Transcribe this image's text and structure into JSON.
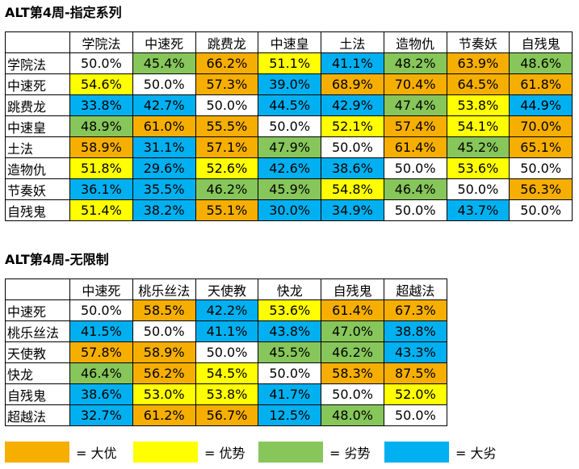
{
  "colors": {
    "orange": "#f6ae00",
    "yellow": "#ffff00",
    "green": "#87c65a",
    "blue": "#00b0f0",
    "white": "#ffffff"
  },
  "table1": {
    "title": "ALT第4周-指定系列",
    "headers": [
      "学院法",
      "中速死",
      "跳费龙",
      "中速皇",
      "土法",
      "造物仇",
      "节奏妖",
      "自残鬼"
    ],
    "rows": [
      {
        "label": "学院法",
        "cells": [
          {
            "v": "50.0%",
            "c": "white"
          },
          {
            "v": "45.4%",
            "c": "green"
          },
          {
            "v": "66.2%",
            "c": "orange"
          },
          {
            "v": "51.1%",
            "c": "yellow"
          },
          {
            "v": "41.1%",
            "c": "blue"
          },
          {
            "v": "48.2%",
            "c": "green"
          },
          {
            "v": "63.9%",
            "c": "orange"
          },
          {
            "v": "48.6%",
            "c": "green"
          }
        ]
      },
      {
        "label": "中速死",
        "cells": [
          {
            "v": "54.6%",
            "c": "yellow"
          },
          {
            "v": "50.0%",
            "c": "white"
          },
          {
            "v": "57.3%",
            "c": "orange"
          },
          {
            "v": "39.0%",
            "c": "blue"
          },
          {
            "v": "68.9%",
            "c": "orange"
          },
          {
            "v": "70.4%",
            "c": "orange"
          },
          {
            "v": "64.5%",
            "c": "orange"
          },
          {
            "v": "61.8%",
            "c": "orange"
          }
        ]
      },
      {
        "label": "跳费龙",
        "cells": [
          {
            "v": "33.8%",
            "c": "blue"
          },
          {
            "v": "42.7%",
            "c": "blue"
          },
          {
            "v": "50.0%",
            "c": "white"
          },
          {
            "v": "44.5%",
            "c": "blue"
          },
          {
            "v": "42.9%",
            "c": "blue"
          },
          {
            "v": "47.4%",
            "c": "green"
          },
          {
            "v": "53.8%",
            "c": "yellow"
          },
          {
            "v": "44.9%",
            "c": "blue"
          }
        ]
      },
      {
        "label": "中速皇",
        "cells": [
          {
            "v": "48.9%",
            "c": "green"
          },
          {
            "v": "61.0%",
            "c": "orange"
          },
          {
            "v": "55.5%",
            "c": "orange"
          },
          {
            "v": "50.0%",
            "c": "white"
          },
          {
            "v": "52.1%",
            "c": "yellow"
          },
          {
            "v": "57.4%",
            "c": "orange"
          },
          {
            "v": "54.1%",
            "c": "yellow"
          },
          {
            "v": "70.0%",
            "c": "orange"
          }
        ]
      },
      {
        "label": "土法",
        "cells": [
          {
            "v": "58.9%",
            "c": "orange"
          },
          {
            "v": "31.1%",
            "c": "blue"
          },
          {
            "v": "57.1%",
            "c": "orange"
          },
          {
            "v": "47.9%",
            "c": "green"
          },
          {
            "v": "50.0%",
            "c": "white"
          },
          {
            "v": "61.4%",
            "c": "orange"
          },
          {
            "v": "45.2%",
            "c": "green"
          },
          {
            "v": "65.1%",
            "c": "orange"
          }
        ]
      },
      {
        "label": "造物仇",
        "cells": [
          {
            "v": "51.8%",
            "c": "yellow"
          },
          {
            "v": "29.6%",
            "c": "blue"
          },
          {
            "v": "52.6%",
            "c": "yellow"
          },
          {
            "v": "42.6%",
            "c": "blue"
          },
          {
            "v": "38.6%",
            "c": "blue"
          },
          {
            "v": "50.0%",
            "c": "white"
          },
          {
            "v": "53.6%",
            "c": "yellow"
          },
          {
            "v": "50.0%",
            "c": "white"
          }
        ]
      },
      {
        "label": "节奏妖",
        "cells": [
          {
            "v": "36.1%",
            "c": "blue"
          },
          {
            "v": "35.5%",
            "c": "blue"
          },
          {
            "v": "46.2%",
            "c": "green"
          },
          {
            "v": "45.9%",
            "c": "green"
          },
          {
            "v": "54.8%",
            "c": "yellow"
          },
          {
            "v": "46.4%",
            "c": "green"
          },
          {
            "v": "50.0%",
            "c": "white"
          },
          {
            "v": "56.3%",
            "c": "orange"
          }
        ]
      },
      {
        "label": "自残鬼",
        "cells": [
          {
            "v": "51.4%",
            "c": "yellow"
          },
          {
            "v": "38.2%",
            "c": "blue"
          },
          {
            "v": "55.1%",
            "c": "orange"
          },
          {
            "v": "30.0%",
            "c": "blue"
          },
          {
            "v": "34.9%",
            "c": "blue"
          },
          {
            "v": "50.0%",
            "c": "white"
          },
          {
            "v": "43.7%",
            "c": "blue"
          },
          {
            "v": "50.0%",
            "c": "white"
          }
        ]
      }
    ]
  },
  "table2": {
    "title": "ALT第4周-无限制",
    "headers": [
      "中速死",
      "桃乐丝法",
      "天使教",
      "快龙",
      "自残鬼",
      "超越法"
    ],
    "rows": [
      {
        "label": "中速死",
        "cells": [
          {
            "v": "50.0%",
            "c": "white"
          },
          {
            "v": "58.5%",
            "c": "orange"
          },
          {
            "v": "42.2%",
            "c": "blue"
          },
          {
            "v": "53.6%",
            "c": "yellow"
          },
          {
            "v": "61.4%",
            "c": "orange"
          },
          {
            "v": "67.3%",
            "c": "orange"
          }
        ]
      },
      {
        "label": "桃乐丝法",
        "cells": [
          {
            "v": "41.5%",
            "c": "blue"
          },
          {
            "v": "50.0%",
            "c": "white"
          },
          {
            "v": "41.1%",
            "c": "blue"
          },
          {
            "v": "43.8%",
            "c": "blue"
          },
          {
            "v": "47.0%",
            "c": "green"
          },
          {
            "v": "38.8%",
            "c": "blue"
          }
        ]
      },
      {
        "label": "天使教",
        "cells": [
          {
            "v": "57.8%",
            "c": "orange"
          },
          {
            "v": "58.9%",
            "c": "orange"
          },
          {
            "v": "50.0%",
            "c": "white"
          },
          {
            "v": "45.5%",
            "c": "green"
          },
          {
            "v": "46.2%",
            "c": "green"
          },
          {
            "v": "43.3%",
            "c": "blue"
          }
        ]
      },
      {
        "label": "快龙",
        "cells": [
          {
            "v": "46.4%",
            "c": "green"
          },
          {
            "v": "56.2%",
            "c": "orange"
          },
          {
            "v": "54.5%",
            "c": "yellow"
          },
          {
            "v": "50.0%",
            "c": "white"
          },
          {
            "v": "58.3%",
            "c": "orange"
          },
          {
            "v": "87.5%",
            "c": "orange"
          }
        ]
      },
      {
        "label": "自残鬼",
        "cells": [
          {
            "v": "38.6%",
            "c": "blue"
          },
          {
            "v": "53.0%",
            "c": "yellow"
          },
          {
            "v": "53.8%",
            "c": "yellow"
          },
          {
            "v": "41.7%",
            "c": "blue"
          },
          {
            "v": "50.0%",
            "c": "white"
          },
          {
            "v": "52.0%",
            "c": "yellow"
          }
        ]
      },
      {
        "label": "超越法",
        "cells": [
          {
            "v": "32.7%",
            "c": "blue"
          },
          {
            "v": "61.2%",
            "c": "orange"
          },
          {
            "v": "56.7%",
            "c": "orange"
          },
          {
            "v": "12.5%",
            "c": "blue"
          },
          {
            "v": "48.0%",
            "c": "green"
          },
          {
            "v": "50.0%",
            "c": "white"
          }
        ]
      }
    ]
  },
  "legend": [
    {
      "color": "orange",
      "label": "= 大优"
    },
    {
      "color": "yellow",
      "label": "= 优势"
    },
    {
      "color": "green",
      "label": "= 劣势"
    },
    {
      "color": "blue",
      "label": "= 大劣"
    }
  ]
}
